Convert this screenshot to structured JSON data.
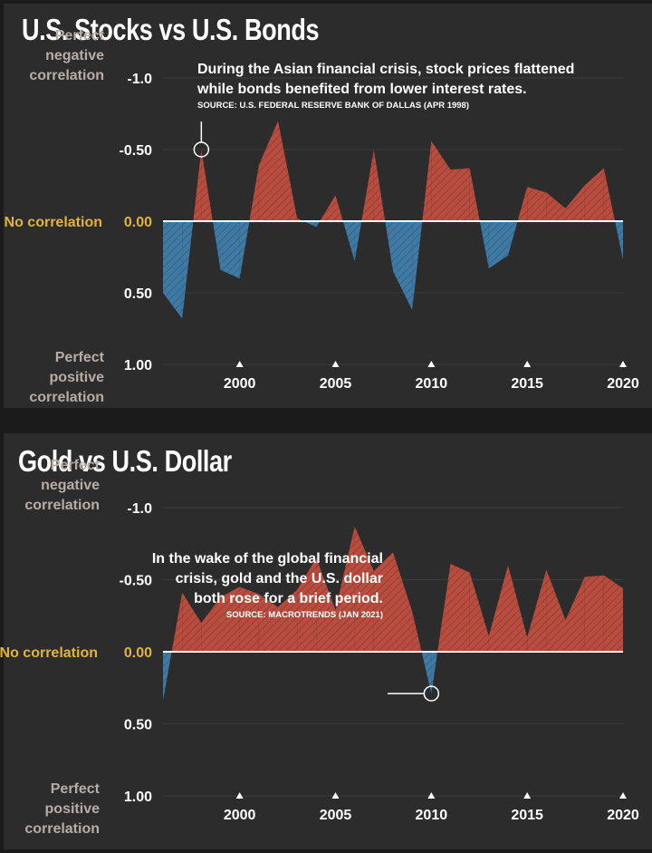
{
  "colors": {
    "positive": "#3f7aa5",
    "negative": "#b84c3e",
    "axis_gold": "#e2b23b",
    "label_gray": "#b7aca6",
    "background": "#2c2c2c"
  },
  "labels": {
    "perfect_positive": [
      "Perfect",
      "positive",
      "correlation"
    ],
    "no_correlation": "No correlation",
    "perfect_negative": [
      "Perfect",
      "negative",
      "correlation"
    ]
  },
  "chart_data": [
    {
      "type": "area",
      "title": "U.S. Stocks vs U.S. Bonds",
      "ylim": [
        -1.0,
        1.0
      ],
      "yticks": [
        "1.00",
        "0.50",
        "0.00",
        "-0.50",
        "-1.0"
      ],
      "xticks": [
        "2000",
        "2005",
        "2010",
        "2015",
        "2020"
      ],
      "xlim": [
        1996,
        2020
      ],
      "x": [
        1996,
        1997,
        1998,
        1999,
        2000,
        2001,
        2002,
        2003,
        2004,
        2005,
        2006,
        2007,
        2008,
        2009,
        2010,
        2011,
        2012,
        2013,
        2014,
        2015,
        2016,
        2017,
        2018,
        2019,
        2020
      ],
      "values": [
        0.5,
        0.68,
        -0.5,
        0.34,
        0.4,
        -0.39,
        -0.7,
        -0.02,
        0.04,
        -0.18,
        0.28,
        -0.5,
        0.35,
        0.62,
        -0.56,
        -0.36,
        -0.37,
        0.33,
        0.24,
        -0.24,
        -0.2,
        -0.09,
        -0.25,
        -0.37,
        0.27
      ],
      "annotation": {
        "x": 1998,
        "y": -0.5,
        "text": [
          "During the Asian financial crisis, stock prices flattened",
          "while bonds benefited from lower interest rates."
        ],
        "source": "SOURCE: U.S. FEDERAL RESERVE BANK OF DALLAS (APR 1998)"
      }
    },
    {
      "type": "area",
      "title": "Gold vs U.S. Dollar",
      "ylim": [
        -1.0,
        1.0
      ],
      "yticks": [
        "1.00",
        "0.50",
        "0.00",
        "-0.50",
        "-1.0"
      ],
      "xticks": [
        "2000",
        "2005",
        "2010",
        "2015",
        "2020"
      ],
      "xlim": [
        1996,
        2020
      ],
      "x": [
        1996,
        1997,
        1998,
        1999,
        2000,
        2001,
        2002,
        2003,
        2004,
        2005,
        2006,
        2007,
        2008,
        2009,
        2010,
        2011,
        2012,
        2013,
        2014,
        2015,
        2016,
        2017,
        2018,
        2019,
        2020
      ],
      "values": [
        0.34,
        -0.41,
        -0.2,
        -0.38,
        -0.45,
        -0.4,
        -0.31,
        -0.43,
        -0.65,
        -0.29,
        -0.87,
        -0.56,
        -0.69,
        -0.28,
        0.29,
        -0.61,
        -0.55,
        -0.11,
        -0.6,
        -0.1,
        -0.57,
        -0.22,
        -0.52,
        -0.53,
        -0.44
      ],
      "annotation": {
        "x": 2010,
        "y": 0.29,
        "text": [
          "In the wake of the global financial",
          "crisis, gold and the U.S. dollar",
          "both rose for a brief period."
        ],
        "source": "SOURCE: MACROTRENDS (JAN 2021)"
      }
    }
  ]
}
